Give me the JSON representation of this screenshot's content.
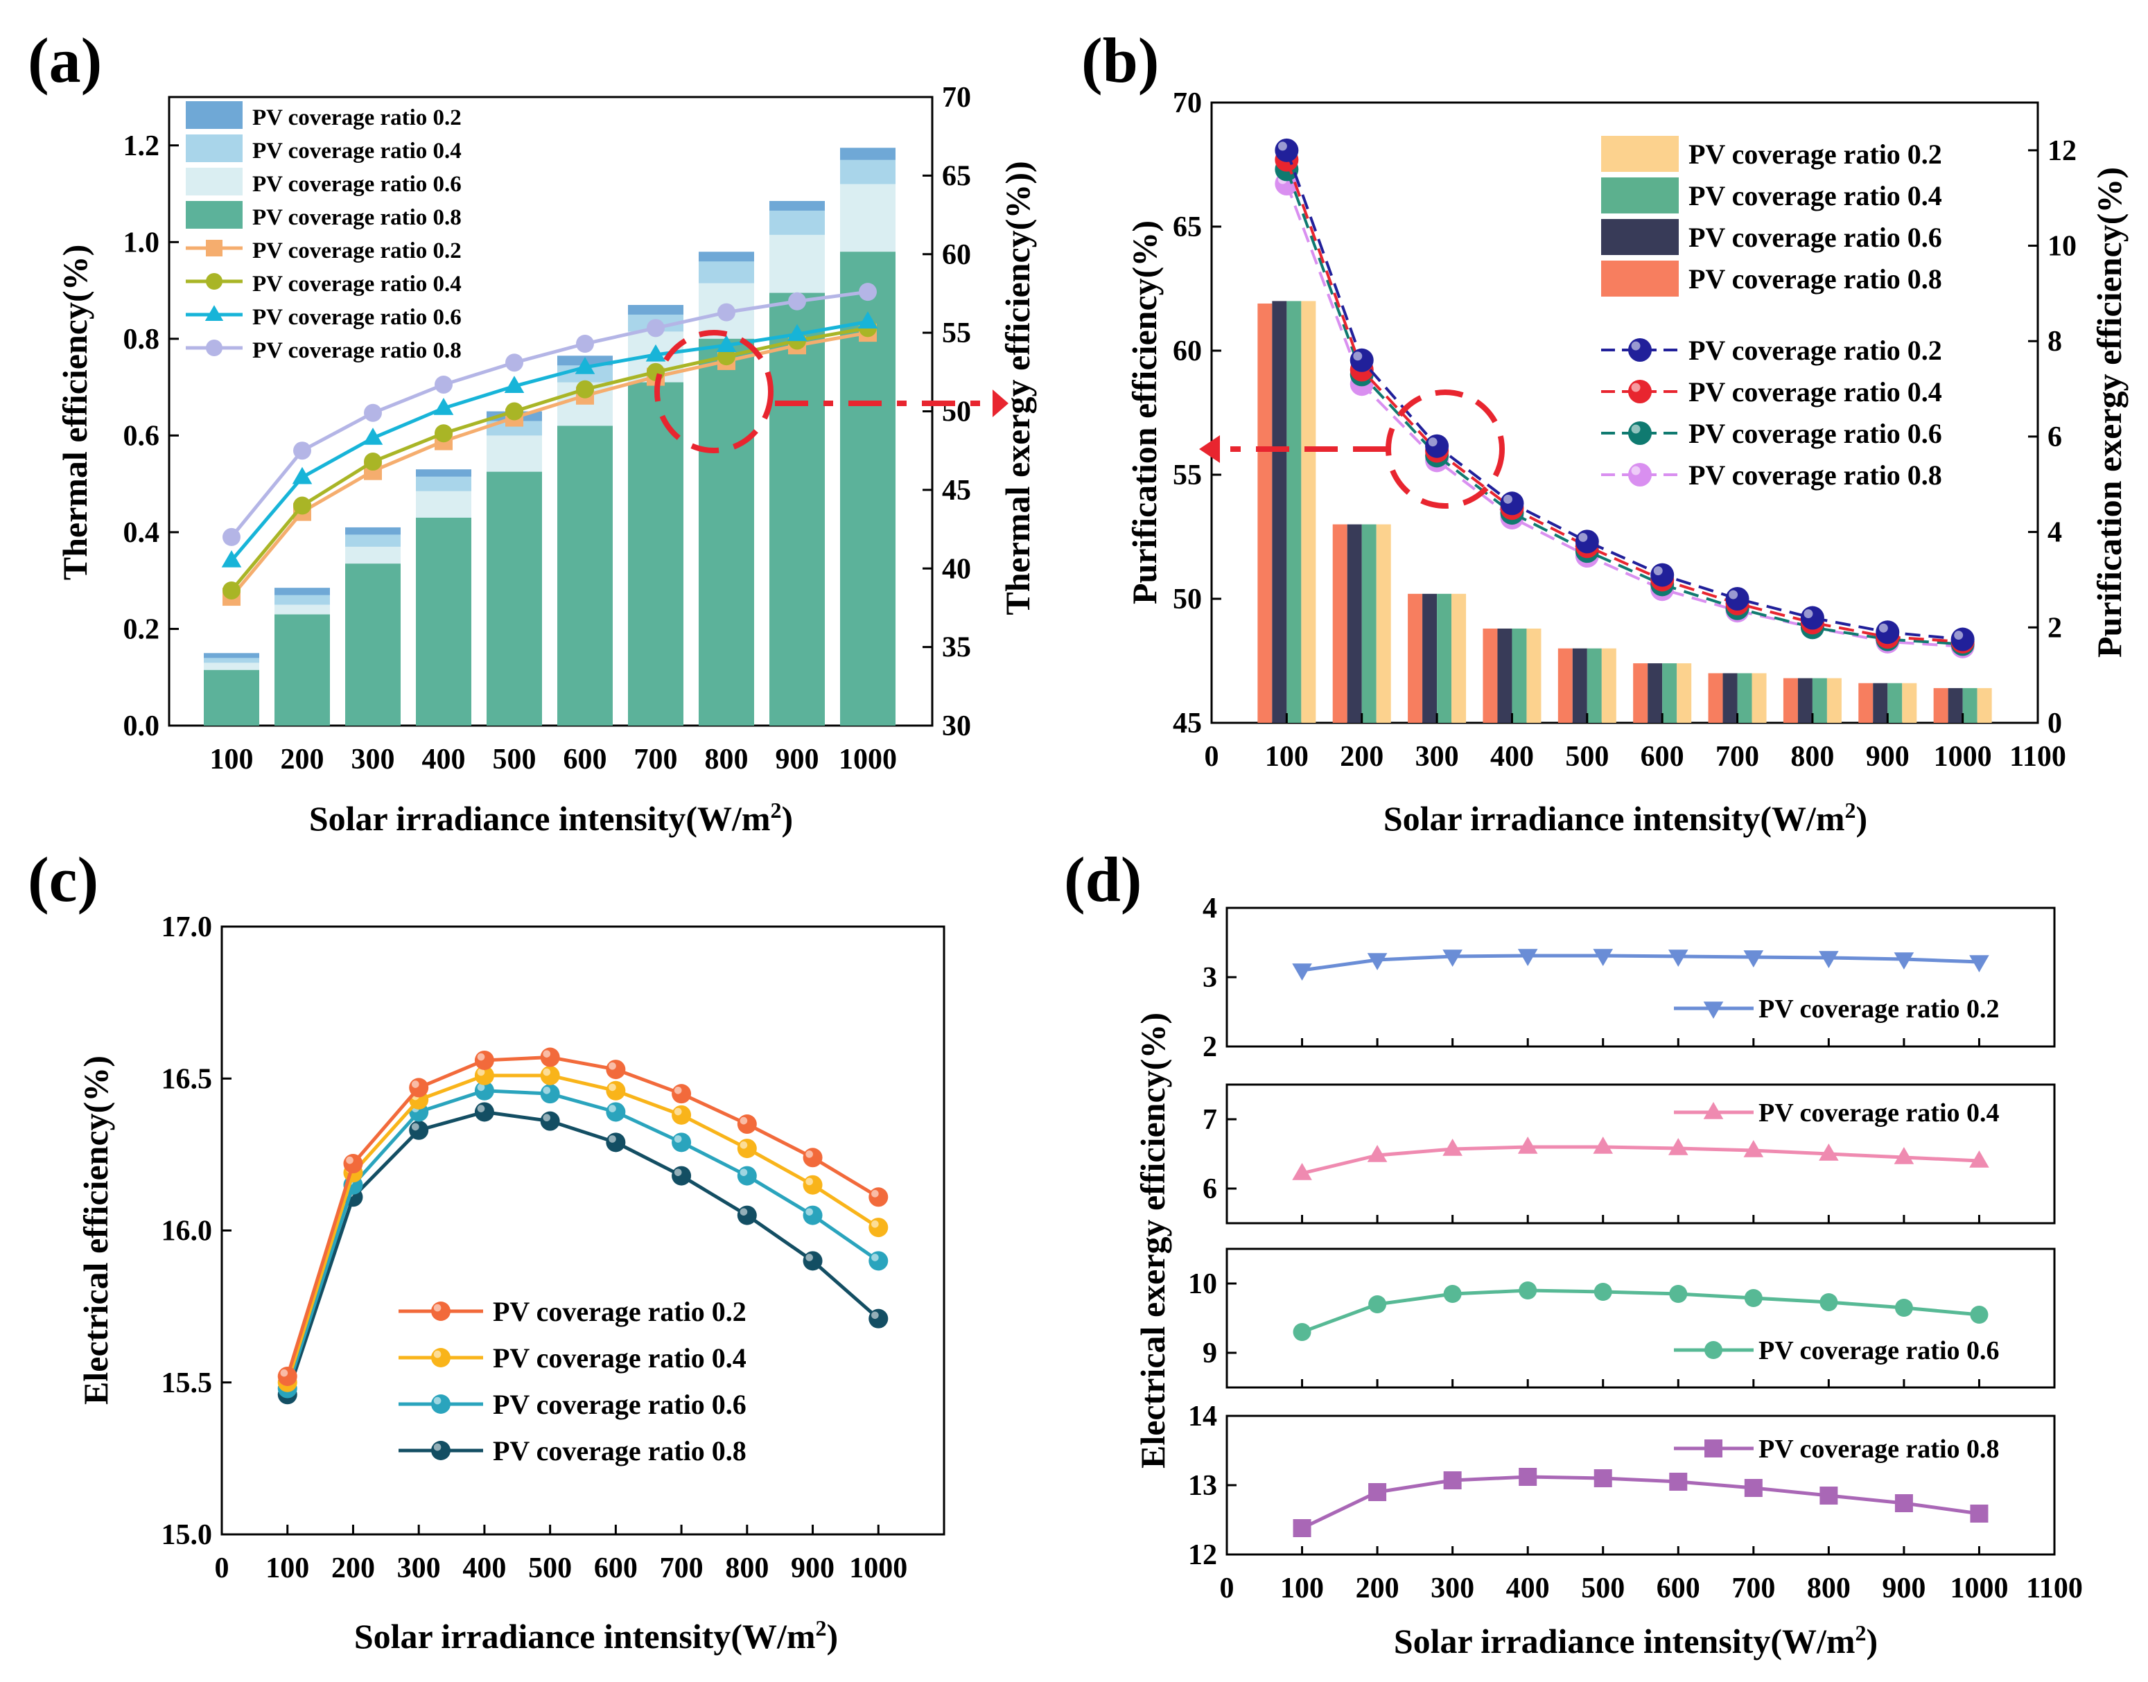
{
  "panel_labels": {
    "a": "(a)",
    "b": "(b)",
    "c": "(c)",
    "d": "(d)"
  },
  "colors": {
    "a_bar": [
      "#6fa8d6",
      "#a9d5ea",
      "#daeef2",
      "#5cb29a"
    ],
    "a_line": [
      "#f5ad6e",
      "#a9b526",
      "#17b4d8",
      "#b4b5e6"
    ],
    "b_bar": [
      "#fcd28e",
      "#5cb08e",
      "#383b58",
      "#f77e5f"
    ],
    "b_line": [
      "#21209a",
      "#e8252f",
      "#0f7a70",
      "#d98ff0"
    ],
    "c_line": [
      "#f26a3b",
      "#f9b41a",
      "#2aa4bd",
      "#134e63"
    ],
    "d_line": [
      "#6a8dd6",
      "#ef8ab0",
      "#57b995",
      "#a967b6"
    ],
    "annot": "#e8252f"
  },
  "chart_data": [
    {
      "id": "a",
      "type": "bar+line",
      "xlabel": "Solar irradiance intensity(W/m²)",
      "ylabel": "Thermal efficiency(%)",
      "y2label": "Thermal exergy efficiency(%))",
      "categories": [
        "100",
        "200",
        "300",
        "400",
        "500",
        "600",
        "700",
        "800",
        "900",
        "1000"
      ],
      "ylim": [
        0,
        1.3
      ],
      "yticks": [
        "0.0",
        "0.2",
        "0.4",
        "0.6",
        "0.8",
        "1.0",
        "1.2"
      ],
      "y2lim": [
        30,
        70
      ],
      "y2ticks": [
        "30",
        "35",
        "40",
        "45",
        "50",
        "55",
        "60",
        "65",
        "70"
      ],
      "bar_series": [
        {
          "name": "PV coverage ratio 0.2",
          "values": [
            0.15,
            0.285,
            0.41,
            0.53,
            0.65,
            0.765,
            0.87,
            0.98,
            1.085,
            1.195
          ]
        },
        {
          "name": "PV coverage ratio 0.4",
          "values": [
            0.14,
            0.27,
            0.395,
            0.515,
            0.63,
            0.745,
            0.85,
            0.96,
            1.065,
            1.17
          ]
        },
        {
          "name": "PV coverage ratio 0.6",
          "values": [
            0.13,
            0.25,
            0.37,
            0.485,
            0.6,
            0.71,
            0.815,
            0.915,
            1.015,
            1.12
          ]
        },
        {
          "name": "PV coverage ratio 0.8",
          "values": [
            0.115,
            0.23,
            0.335,
            0.43,
            0.525,
            0.62,
            0.71,
            0.8,
            0.895,
            0.98
          ]
        }
      ],
      "line_series": [
        {
          "name": "PV coverage ratio 0.2",
          "values": [
            38.2,
            43.6,
            46.2,
            48.1,
            49.6,
            51.0,
            52.2,
            53.2,
            54.2,
            55.0
          ]
        },
        {
          "name": "PV coverage ratio 0.4",
          "values": [
            38.6,
            44.0,
            46.8,
            48.6,
            50.0,
            51.4,
            52.5,
            53.5,
            54.5,
            55.3
          ]
        },
        {
          "name": "PV coverage ratio 0.6",
          "values": [
            40.5,
            45.8,
            48.3,
            50.2,
            51.6,
            52.8,
            53.6,
            54.2,
            54.9,
            55.7
          ]
        },
        {
          "name": "PV coverage ratio 0.8",
          "values": [
            42.0,
            47.5,
            49.9,
            51.7,
            53.1,
            54.3,
            55.3,
            56.3,
            57.0,
            57.6
          ]
        }
      ]
    },
    {
      "id": "b",
      "type": "bar+line",
      "xlabel": "Solar irradiance intensity(W/m²)",
      "ylabel": "Purification efficiency(%)",
      "y2label": "Purification exergy efficiency(%)",
      "xlim": [
        0,
        1100
      ],
      "xticks": [
        "0",
        "100",
        "200",
        "300",
        "400",
        "500",
        "600",
        "700",
        "800",
        "900",
        "1000",
        "1100"
      ],
      "ylim": [
        45,
        70
      ],
      "yticks": [
        "45",
        "50",
        "55",
        "60",
        "65",
        "70"
      ],
      "y2lim": [
        0,
        13
      ],
      "y2ticks": [
        "0",
        "2",
        "4",
        "6",
        "8",
        "10",
        "12"
      ],
      "x": [
        100,
        200,
        300,
        400,
        500,
        600,
        700,
        800,
        900,
        1000
      ],
      "bar_series": [
        {
          "name": "PV coverage ratio 0.2",
          "values": [
            62.0,
            53.0,
            50.2,
            48.8,
            48.0,
            47.4,
            47.0,
            46.8,
            46.6,
            46.4
          ]
        },
        {
          "name": "PV coverage ratio 0.4",
          "values": [
            62.0,
            53.0,
            50.2,
            48.8,
            48.0,
            47.4,
            47.0,
            46.8,
            46.6,
            46.4
          ]
        },
        {
          "name": "PV coverage ratio 0.6",
          "values": [
            62.0,
            53.0,
            50.2,
            48.8,
            48.0,
            47.4,
            47.0,
            46.8,
            46.6,
            46.4
          ]
        },
        {
          "name": "PV coverage ratio 0.8",
          "values": [
            61.9,
            53.0,
            50.2,
            48.8,
            48.0,
            47.4,
            47.0,
            46.8,
            46.6,
            46.4
          ]
        }
      ],
      "line_series": [
        {
          "name": "PV coverage ratio 0.2",
          "values": [
            12.0,
            7.6,
            5.8,
            4.6,
            3.8,
            3.1,
            2.6,
            2.2,
            1.9,
            1.75
          ]
        },
        {
          "name": "PV coverage ratio 0.4",
          "values": [
            11.8,
            7.4,
            5.7,
            4.5,
            3.7,
            3.0,
            2.5,
            2.1,
            1.8,
            1.7
          ]
        },
        {
          "name": "PV coverage ratio 0.6",
          "values": [
            11.6,
            7.3,
            5.6,
            4.4,
            3.6,
            2.9,
            2.4,
            2.0,
            1.75,
            1.65
          ]
        },
        {
          "name": "PV coverage ratio 0.8",
          "values": [
            11.3,
            7.1,
            5.5,
            4.3,
            3.5,
            2.8,
            2.35,
            2.0,
            1.7,
            1.6
          ]
        }
      ]
    },
    {
      "id": "c",
      "type": "line",
      "xlabel": "Solar irradiance intensity(W/m²)",
      "ylabel": "Electrical efficiency(%)",
      "xlim": [
        0,
        1100
      ],
      "xticks": [
        "0",
        "100",
        "200",
        "300",
        "400",
        "500",
        "600",
        "700",
        "800",
        "900",
        "1000"
      ],
      "ylim": [
        15.0,
        17.0
      ],
      "yticks": [
        "15.0",
        "15.5",
        "16.0",
        "16.5",
        "17.0"
      ],
      "x": [
        100,
        200,
        300,
        400,
        500,
        600,
        700,
        800,
        900,
        1000
      ],
      "series": [
        {
          "name": "PV coverage ratio 0.2",
          "values": [
            15.52,
            16.22,
            16.47,
            16.56,
            16.57,
            16.53,
            16.45,
            16.35,
            16.24,
            16.11
          ]
        },
        {
          "name": "PV coverage ratio 0.4",
          "values": [
            15.5,
            16.19,
            16.43,
            16.51,
            16.51,
            16.46,
            16.38,
            16.27,
            16.15,
            16.01
          ]
        },
        {
          "name": "PV coverage ratio 0.6",
          "values": [
            15.48,
            16.15,
            16.39,
            16.46,
            16.45,
            16.39,
            16.29,
            16.18,
            16.05,
            15.9
          ]
        },
        {
          "name": "PV coverage ratio 0.8",
          "values": [
            15.46,
            16.11,
            16.33,
            16.39,
            16.36,
            16.29,
            16.18,
            16.05,
            15.9,
            15.71
          ]
        }
      ]
    },
    {
      "id": "d",
      "type": "line",
      "xlabel": "Solar irradiance intensity(W/m²)",
      "ylabel": "Electrical exergy efficiency(%)",
      "xlim": [
        0,
        1100
      ],
      "xticks": [
        "0",
        "100",
        "200",
        "300",
        "400",
        "500",
        "600",
        "700",
        "800",
        "900",
        "1000",
        "1100"
      ],
      "x": [
        100,
        200,
        300,
        400,
        500,
        600,
        700,
        800,
        900,
        1000
      ],
      "subplots": [
        {
          "name": "PV coverage ratio 0.2",
          "ylim": [
            2,
            4
          ],
          "yticks": [
            "2",
            "3",
            "4"
          ],
          "values": [
            3.1,
            3.25,
            3.3,
            3.31,
            3.31,
            3.3,
            3.29,
            3.28,
            3.26,
            3.22
          ]
        },
        {
          "name": "PV coverage ratio 0.4",
          "ylim": [
            5.5,
            7.5
          ],
          "yticks": [
            "6",
            "7"
          ],
          "values": [
            6.22,
            6.48,
            6.57,
            6.6,
            6.6,
            6.58,
            6.55,
            6.5,
            6.45,
            6.4
          ]
        },
        {
          "name": "PV coverage ratio 0.6",
          "ylim": [
            8.5,
            10.5
          ],
          "yticks": [
            "9",
            "10"
          ],
          "values": [
            9.3,
            9.7,
            9.85,
            9.9,
            9.88,
            9.85,
            9.79,
            9.73,
            9.65,
            9.55
          ]
        },
        {
          "name": "PV coverage ratio 0.8",
          "ylim": [
            12,
            14
          ],
          "yticks": [
            "12",
            "13",
            "14"
          ],
          "values": [
            12.38,
            12.9,
            13.07,
            13.12,
            13.1,
            13.05,
            12.96,
            12.85,
            12.74,
            12.59
          ]
        }
      ]
    }
  ]
}
